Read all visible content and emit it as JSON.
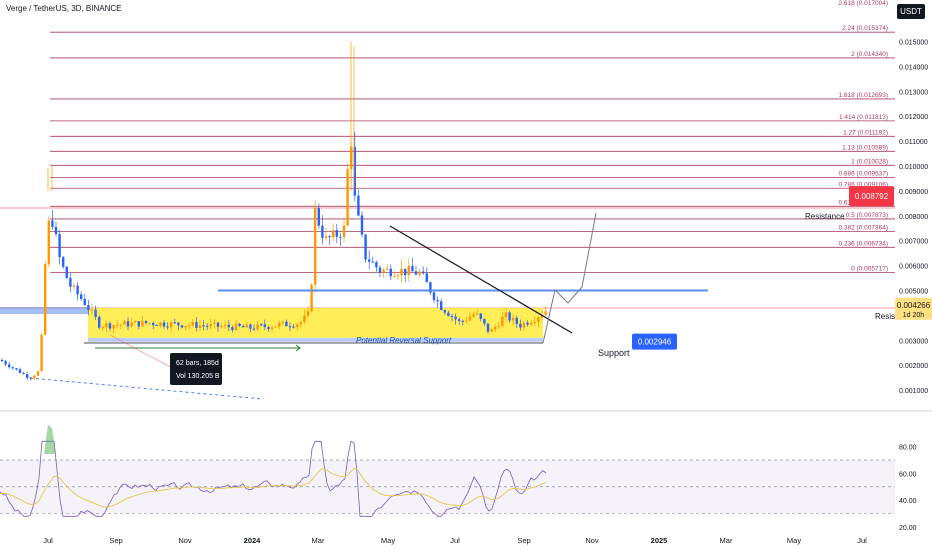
{
  "header": {
    "symbol": "Verge / TetherUS, 3D, BINANCE",
    "currency_button": "USDT"
  },
  "colors": {
    "fib": "#a83d5c",
    "up": "#ff9800",
    "down": "#2962ff",
    "support_box": "#ffeb3b",
    "blue_line": "#5b8def",
    "rsi": "#7e57c2",
    "rsi_ma": "#e6c84a"
  },
  "chart_data": {
    "type": "candlestick",
    "title": "Verge / TetherUS, 3D, BINANCE",
    "yaxis": {
      "ticks": [
        "0.015000",
        "0.014000",
        "0.013000",
        "0.012000",
        "0.011000",
        "0.010000",
        "0.009000",
        "0.008000",
        "0.007000",
        "0.006000",
        "0.005000",
        "0.004000",
        "0.003000",
        "0.002000",
        "0.001000"
      ],
      "range": [
        0,
        0.0155
      ]
    },
    "xaxis": {
      "ticks": [
        "Jul",
        "Sep",
        "Nov",
        "2024",
        "Mar",
        "May",
        "Jul",
        "Sep",
        "Nov",
        "2025",
        "Mar",
        "May",
        "Jul"
      ]
    },
    "fib_levels": [
      {
        "label": "2.618 (0.017004)",
        "value": 0.017004
      },
      {
        "label": "2.24 (0.015374)",
        "value": 0.015374
      },
      {
        "label": "2 (0.014340)",
        "value": 0.01434
      },
      {
        "label": "1.618 (0.012693)",
        "value": 0.012693
      },
      {
        "label": "1.414 (0.011813)",
        "value": 0.011813
      },
      {
        "label": "1.27 (0.011192)",
        "value": 0.011192
      },
      {
        "label": "1.13 (0.010589)",
        "value": 0.010589
      },
      {
        "label": "1 (0.010028)",
        "value": 0.010028
      },
      {
        "label": "0.886 (0.009537)",
        "value": 0.009537
      },
      {
        "label": "0.786 (0.009106)",
        "value": 0.009106
      },
      {
        "label": "0.618 (0.008381)",
        "value": 0.008381
      },
      {
        "label": "0.5 (0.007873)",
        "value": 0.007873
      },
      {
        "label": "0.382 (0.007364)",
        "value": 0.007364
      },
      {
        "label": "0.236 (0.006734)",
        "value": 0.006734
      },
      {
        "label": "0 (0.005717)",
        "value": 0.005717
      }
    ],
    "price_badges": [
      {
        "label": "0.008792",
        "value": 0.008792,
        "color": "#f23645"
      },
      {
        "label": "0.004266",
        "value": 0.004266,
        "color": "#ffe082",
        "sub": "1d 20h"
      },
      {
        "label": "0.002946",
        "value": 0.002946,
        "color": "#2962ff"
      }
    ],
    "annotations": {
      "resistance_upper": "Resistance",
      "resistance_lower": "Resis",
      "support": "Support",
      "reversal": "Potential Reversal Support",
      "range_info_line1": "62 bars, 185d",
      "range_info_line2": "Vol 130.205 B"
    },
    "blue_resistance_line": 0.005,
    "support_box": [
      0.0031,
      0.0043
    ],
    "rsi": {
      "ticks": [
        "80.00",
        "60.00",
        "40.00",
        "20.00"
      ],
      "range": [
        20,
        85
      ],
      "upper": 70,
      "lower": 30
    }
  }
}
